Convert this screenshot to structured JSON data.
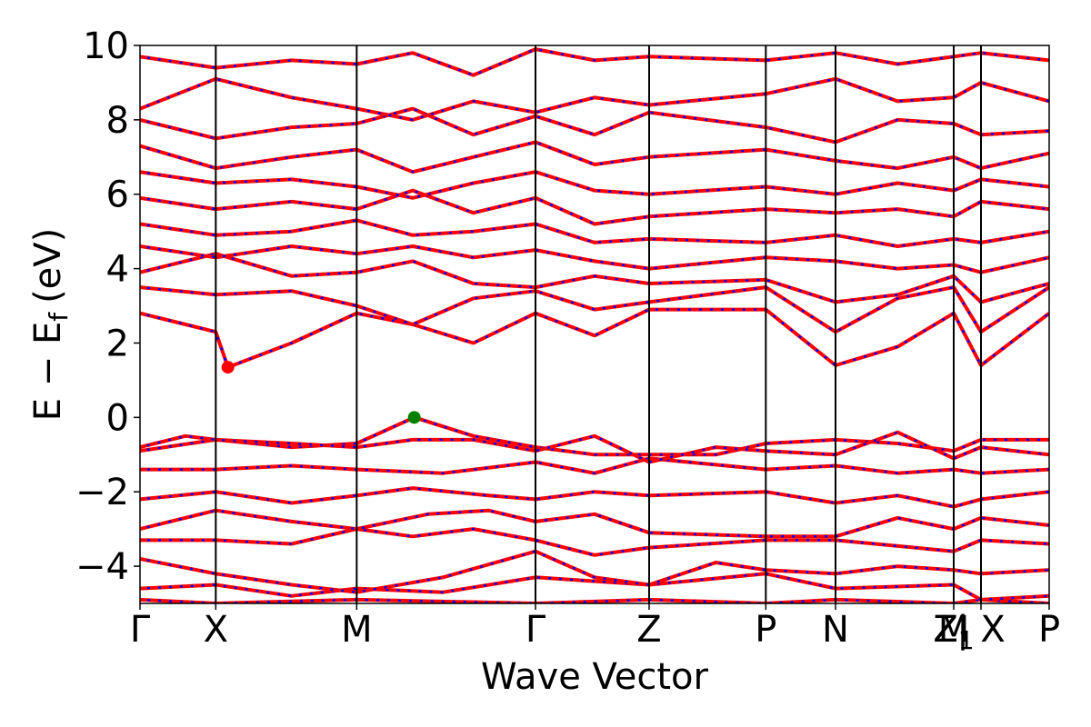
{
  "chart_data": {
    "type": "line",
    "title": "",
    "xlabel": "Wave Vector",
    "ylabel": "E − E",
    "ylabel_subscript": "f",
    "ylabel_unit": "(eV)",
    "ylim": [
      -5,
      10
    ],
    "yticks": [
      -4,
      -2,
      0,
      2,
      4,
      6,
      8,
      10
    ],
    "ytick_labels": [
      "−4",
      "−2",
      "0",
      "2",
      "4",
      "6",
      "8",
      "10"
    ],
    "kpoints": [
      {
        "label": "Γ",
        "x": 0.0
      },
      {
        "label": "X",
        "x": 0.5
      },
      {
        "label": "M",
        "x": 1.43
      },
      {
        "label": "Γ",
        "x": 2.61
      },
      {
        "label": "Z",
        "x": 3.36
      },
      {
        "label": "P",
        "x": 4.13
      },
      {
        "label": "N",
        "x": 4.59
      },
      {
        "label": "Z",
        "x": 5.37,
        "subscript": "1",
        "overlap_label": "M"
      },
      {
        "label": "X",
        "x": 5.55,
        "prefix": "| "
      },
      {
        "label": "P",
        "x": 6.0
      }
    ],
    "xlim": [
      0,
      6.0
    ],
    "colors": {
      "spin_up": "#ff0000",
      "spin_down": "#0000ff",
      "cbm": "#ff0000",
      "vbm": "#008000",
      "vlines": "#000000"
    },
    "markers": [
      {
        "name": "CBM",
        "x": 0.58,
        "y": 1.35,
        "color": "#ff0000"
      },
      {
        "name": "VBM",
        "x": 1.81,
        "y": 0.0,
        "color": "#008000"
      }
    ],
    "bands": [
      [
        [
          0,
          -4.9
        ],
        [
          0.5,
          -5.0
        ],
        [
          1.43,
          -4.9
        ],
        [
          2.61,
          -5.0
        ],
        [
          3.36,
          -4.9
        ],
        [
          4.13,
          -5.0
        ],
        [
          4.59,
          -4.9
        ],
        [
          5.37,
          -5.0
        ],
        [
          5.55,
          -4.9
        ],
        [
          6.0,
          -5.0
        ]
      ],
      [
        [
          0,
          -4.6
        ],
        [
          0.5,
          -4.5
        ],
        [
          1.0,
          -4.8
        ],
        [
          1.43,
          -4.6
        ],
        [
          2.0,
          -4.7
        ],
        [
          2.61,
          -4.3
        ],
        [
          3.36,
          -4.5
        ],
        [
          4.13,
          -4.2
        ],
        [
          4.59,
          -4.6
        ],
        [
          5.37,
          -4.5
        ],
        [
          5.55,
          -4.9
        ],
        [
          6.0,
          -4.8
        ]
      ],
      [
        [
          0,
          -3.8
        ],
        [
          0.5,
          -4.2
        ],
        [
          1.0,
          -4.5
        ],
        [
          1.43,
          -4.7
        ],
        [
          2.0,
          -4.3
        ],
        [
          2.61,
          -3.6
        ],
        [
          3.0,
          -4.3
        ],
        [
          3.36,
          -4.5
        ],
        [
          3.8,
          -3.9
        ],
        [
          4.13,
          -4.1
        ],
        [
          4.59,
          -4.2
        ],
        [
          5.0,
          -4.0
        ],
        [
          5.37,
          -4.1
        ],
        [
          5.55,
          -4.2
        ],
        [
          6.0,
          -4.1
        ]
      ],
      [
        [
          0,
          -3.3
        ],
        [
          0.5,
          -3.3
        ],
        [
          1.0,
          -3.4
        ],
        [
          1.43,
          -3.0
        ],
        [
          1.8,
          -3.2
        ],
        [
          2.2,
          -3.0
        ],
        [
          2.61,
          -3.3
        ],
        [
          3.0,
          -3.7
        ],
        [
          3.36,
          -3.5
        ],
        [
          4.13,
          -3.3
        ],
        [
          4.59,
          -3.3
        ],
        [
          5.37,
          -3.6
        ],
        [
          5.55,
          -3.3
        ],
        [
          6.0,
          -3.4
        ]
      ],
      [
        [
          0,
          -3.0
        ],
        [
          0.5,
          -2.5
        ],
        [
          1.0,
          -2.8
        ],
        [
          1.43,
          -3.0
        ],
        [
          1.9,
          -2.6
        ],
        [
          2.3,
          -2.5
        ],
        [
          2.61,
          -2.8
        ],
        [
          3.0,
          -2.6
        ],
        [
          3.36,
          -3.1
        ],
        [
          4.13,
          -3.2
        ],
        [
          4.59,
          -3.2
        ],
        [
          5.0,
          -2.7
        ],
        [
          5.37,
          -3.0
        ],
        [
          5.55,
          -2.7
        ],
        [
          6.0,
          -2.9
        ]
      ],
      [
        [
          0,
          -2.2
        ],
        [
          0.5,
          -2.0
        ],
        [
          1.0,
          -2.3
        ],
        [
          1.43,
          -2.1
        ],
        [
          1.8,
          -1.9
        ],
        [
          2.3,
          -2.1
        ],
        [
          2.61,
          -2.2
        ],
        [
          3.0,
          -2.0
        ],
        [
          3.36,
          -2.1
        ],
        [
          4.13,
          -2.0
        ],
        [
          4.59,
          -2.3
        ],
        [
          5.0,
          -2.1
        ],
        [
          5.37,
          -2.4
        ],
        [
          5.55,
          -2.2
        ],
        [
          6.0,
          -2.0
        ]
      ],
      [
        [
          0,
          -1.4
        ],
        [
          0.5,
          -1.4
        ],
        [
          1.0,
          -1.3
        ],
        [
          1.43,
          -1.4
        ],
        [
          2.0,
          -1.5
        ],
        [
          2.61,
          -1.2
        ],
        [
          3.0,
          -1.5
        ],
        [
          3.36,
          -1.1
        ],
        [
          4.13,
          -1.4
        ],
        [
          4.59,
          -1.3
        ],
        [
          5.0,
          -1.5
        ],
        [
          5.37,
          -1.4
        ],
        [
          5.55,
          -1.5
        ],
        [
          6.0,
          -1.4
        ]
      ],
      [
        [
          0,
          -0.9
        ],
        [
          0.5,
          -0.6
        ],
        [
          1.0,
          -0.8
        ],
        [
          1.43,
          -0.7
        ],
        [
          1.81,
          0.0
        ],
        [
          2.2,
          -0.5
        ],
        [
          2.61,
          -0.8
        ],
        [
          3.0,
          -1.0
        ],
        [
          3.36,
          -1.0
        ],
        [
          3.8,
          -1.0
        ],
        [
          4.13,
          -0.7
        ],
        [
          4.59,
          -0.6
        ],
        [
          5.0,
          -0.7
        ],
        [
          5.37,
          -0.9
        ],
        [
          5.55,
          -0.6
        ],
        [
          6.0,
          -0.6
        ]
      ],
      [
        [
          0,
          -0.8
        ],
        [
          0.3,
          -0.5
        ],
        [
          0.5,
          -0.6
        ],
        [
          1.0,
          -0.7
        ],
        [
          1.43,
          -0.8
        ],
        [
          1.8,
          -0.6
        ],
        [
          2.2,
          -0.6
        ],
        [
          2.61,
          -0.9
        ],
        [
          3.0,
          -0.5
        ],
        [
          3.36,
          -1.2
        ],
        [
          3.8,
          -0.8
        ],
        [
          4.13,
          -0.9
        ],
        [
          4.59,
          -1.0
        ],
        [
          5.0,
          -0.4
        ],
        [
          5.37,
          -1.1
        ],
        [
          5.55,
          -0.8
        ],
        [
          6.0,
          -1.0
        ]
      ],
      [
        [
          0,
          2.8
        ],
        [
          0.3,
          2.5
        ],
        [
          0.5,
          2.3
        ],
        [
          0.58,
          1.35
        ],
        [
          1.0,
          2.0
        ],
        [
          1.43,
          2.8
        ],
        [
          1.8,
          2.5
        ],
        [
          2.2,
          2.0
        ],
        [
          2.61,
          2.8
        ],
        [
          3.0,
          2.2
        ],
        [
          3.36,
          2.9
        ],
        [
          4.13,
          2.9
        ],
        [
          4.59,
          1.4
        ],
        [
          5.0,
          1.9
        ],
        [
          5.37,
          2.8
        ],
        [
          5.55,
          1.4
        ],
        [
          6.0,
          2.8
        ]
      ],
      [
        [
          0,
          3.5
        ],
        [
          0.5,
          3.3
        ],
        [
          1.0,
          3.4
        ],
        [
          1.43,
          3.0
        ],
        [
          1.8,
          2.5
        ],
        [
          2.2,
          3.2
        ],
        [
          2.61,
          3.4
        ],
        [
          3.0,
          2.9
        ],
        [
          3.36,
          3.1
        ],
        [
          4.13,
          3.5
        ],
        [
          4.59,
          2.3
        ],
        [
          5.0,
          3.2
        ],
        [
          5.37,
          3.5
        ],
        [
          5.55,
          2.3
        ],
        [
          6.0,
          3.5
        ]
      ],
      [
        [
          0,
          3.9
        ],
        [
          0.5,
          4.4
        ],
        [
          1.0,
          3.8
        ],
        [
          1.43,
          3.9
        ],
        [
          1.8,
          4.2
        ],
        [
          2.2,
          3.6
        ],
        [
          2.61,
          3.5
        ],
        [
          3.0,
          3.8
        ],
        [
          3.36,
          3.6
        ],
        [
          4.13,
          3.7
        ],
        [
          4.59,
          3.1
        ],
        [
          5.0,
          3.3
        ],
        [
          5.37,
          3.8
        ],
        [
          5.55,
          3.1
        ],
        [
          6.0,
          3.6
        ]
      ],
      [
        [
          0,
          4.6
        ],
        [
          0.5,
          4.3
        ],
        [
          1.0,
          4.6
        ],
        [
          1.43,
          4.4
        ],
        [
          1.8,
          4.6
        ],
        [
          2.2,
          4.3
        ],
        [
          2.61,
          4.5
        ],
        [
          3.0,
          4.2
        ],
        [
          3.36,
          4.0
        ],
        [
          4.13,
          4.3
        ],
        [
          4.59,
          4.2
        ],
        [
          5.0,
          4.0
        ],
        [
          5.37,
          4.1
        ],
        [
          5.55,
          3.9
        ],
        [
          6.0,
          4.3
        ]
      ],
      [
        [
          0,
          5.2
        ],
        [
          0.5,
          4.9
        ],
        [
          1.0,
          5.0
        ],
        [
          1.43,
          5.3
        ],
        [
          1.8,
          4.9
        ],
        [
          2.2,
          5.0
        ],
        [
          2.61,
          5.2
        ],
        [
          3.0,
          4.7
        ],
        [
          3.36,
          4.8
        ],
        [
          4.13,
          4.7
        ],
        [
          4.59,
          4.9
        ],
        [
          5.0,
          4.6
        ],
        [
          5.37,
          4.8
        ],
        [
          5.55,
          4.7
        ],
        [
          6.0,
          5.0
        ]
      ],
      [
        [
          0,
          5.9
        ],
        [
          0.5,
          5.6
        ],
        [
          1.0,
          5.8
        ],
        [
          1.43,
          5.6
        ],
        [
          1.8,
          6.1
        ],
        [
          2.2,
          5.5
        ],
        [
          2.61,
          5.9
        ],
        [
          3.0,
          5.2
        ],
        [
          3.36,
          5.4
        ],
        [
          4.13,
          5.6
        ],
        [
          4.59,
          5.5
        ],
        [
          5.0,
          5.6
        ],
        [
          5.37,
          5.4
        ],
        [
          5.55,
          5.8
        ],
        [
          6.0,
          5.6
        ]
      ],
      [
        [
          0,
          6.6
        ],
        [
          0.5,
          6.3
        ],
        [
          1.0,
          6.4
        ],
        [
          1.43,
          6.2
        ],
        [
          1.8,
          5.9
        ],
        [
          2.2,
          6.3
        ],
        [
          2.61,
          6.6
        ],
        [
          3.0,
          6.1
        ],
        [
          3.36,
          6.0
        ],
        [
          4.13,
          6.2
        ],
        [
          4.59,
          6.0
        ],
        [
          5.0,
          6.3
        ],
        [
          5.37,
          6.1
        ],
        [
          5.55,
          6.4
        ],
        [
          6.0,
          6.2
        ]
      ],
      [
        [
          0,
          7.3
        ],
        [
          0.5,
          6.7
        ],
        [
          1.0,
          7.0
        ],
        [
          1.43,
          7.2
        ],
        [
          1.8,
          6.6
        ],
        [
          2.2,
          7.0
        ],
        [
          2.61,
          7.4
        ],
        [
          3.0,
          6.8
        ],
        [
          3.36,
          7.0
        ],
        [
          4.13,
          7.2
        ],
        [
          4.59,
          6.9
        ],
        [
          5.0,
          6.7
        ],
        [
          5.37,
          7.0
        ],
        [
          5.55,
          6.7
        ],
        [
          6.0,
          7.1
        ]
      ],
      [
        [
          0,
          8.0
        ],
        [
          0.5,
          7.5
        ],
        [
          1.0,
          7.8
        ],
        [
          1.43,
          7.9
        ],
        [
          1.8,
          8.3
        ],
        [
          2.2,
          7.6
        ],
        [
          2.61,
          8.1
        ],
        [
          3.0,
          7.6
        ],
        [
          3.36,
          8.2
        ],
        [
          4.13,
          7.8
        ],
        [
          4.59,
          7.4
        ],
        [
          5.0,
          8.0
        ],
        [
          5.37,
          7.9
        ],
        [
          5.55,
          7.6
        ],
        [
          6.0,
          7.7
        ]
      ],
      [
        [
          0,
          8.3
        ],
        [
          0.5,
          9.1
        ],
        [
          1.0,
          8.6
        ],
        [
          1.43,
          8.3
        ],
        [
          1.8,
          8.0
        ],
        [
          2.2,
          8.5
        ],
        [
          2.61,
          8.2
        ],
        [
          3.0,
          8.6
        ],
        [
          3.36,
          8.4
        ],
        [
          4.13,
          8.7
        ],
        [
          4.59,
          9.1
        ],
        [
          5.0,
          8.5
        ],
        [
          5.37,
          8.6
        ],
        [
          5.55,
          9.0
        ],
        [
          6.0,
          8.5
        ]
      ],
      [
        [
          0,
          9.7
        ],
        [
          0.5,
          9.4
        ],
        [
          1.0,
          9.6
        ],
        [
          1.43,
          9.5
        ],
        [
          1.8,
          9.8
        ],
        [
          2.2,
          9.2
        ],
        [
          2.61,
          9.9
        ],
        [
          3.0,
          9.6
        ],
        [
          3.36,
          9.7
        ],
        [
          4.13,
          9.6
        ],
        [
          4.59,
          9.8
        ],
        [
          5.0,
          9.5
        ],
        [
          5.37,
          9.7
        ],
        [
          5.55,
          9.8
        ],
        [
          6.0,
          9.6
        ]
      ]
    ]
  }
}
